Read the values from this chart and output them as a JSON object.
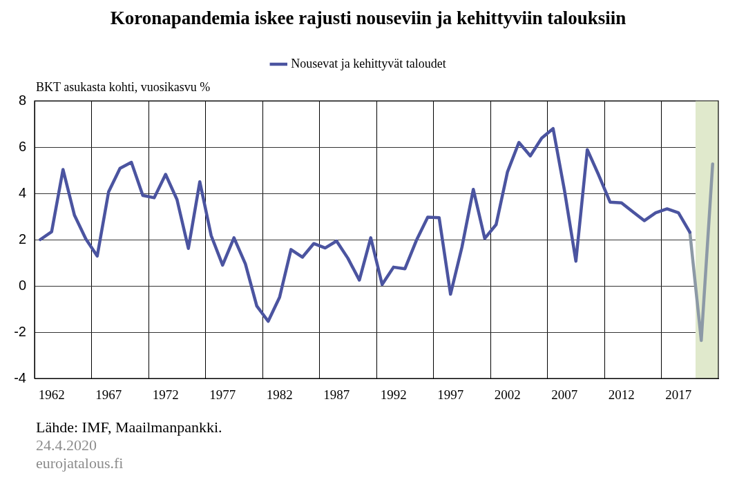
{
  "chart_data": {
    "type": "line",
    "title": "Koronapandemia iskee rajusti nouseviin ja kehittyviin talouksiin",
    "ylabel": "BKT asukasta kohti, vuosikasvu %",
    "xlim": [
      1960.5,
      2020.5
    ],
    "xticks": [
      1962,
      {
        "value": 1965.5,
        "label": null
      },
      1967,
      {
        "value": 1970.5,
        "label": null
      },
      1972,
      {
        "value": 1975.5,
        "label": null
      },
      1977,
      {
        "value": 1980.5,
        "label": null
      },
      1982,
      {
        "value": 1985.5,
        "label": null
      },
      1987,
      {
        "value": 1990.5,
        "label": null
      },
      1992,
      {
        "value": 1995.5,
        "label": null
      },
      1997,
      {
        "value": 2000.5,
        "label": null
      },
      2002,
      {
        "value": 2005.5,
        "label": null
      },
      2007,
      {
        "value": 2010.5,
        "label": null
      },
      2012,
      {
        "value": 2015.5,
        "label": null
      },
      2017
    ],
    "ylim": [
      -4,
      8
    ],
    "yticks": [
      -4,
      -2,
      0,
      2,
      4,
      6,
      8
    ],
    "grid": true,
    "legend": "top",
    "marker": "none",
    "line_style": "solid",
    "bands": [
      {
        "axis": "x",
        "from": 2018.5,
        "to": 2020.5,
        "color": "#e0e9cc"
      }
    ],
    "series": [
      {
        "name": "Nousevat ja kehittyvät taloudet",
        "color": "#4b54a0",
        "x": [
          1961,
          1962,
          1963,
          1964,
          1965,
          1966,
          1967,
          1968,
          1969,
          1970,
          1971,
          1972,
          1973,
          1974,
          1975,
          1976,
          1977,
          1978,
          1979,
          1980,
          1981,
          1982,
          1983,
          1984,
          1985,
          1986,
          1987,
          1988,
          1989,
          1990,
          1991,
          1992,
          1993,
          1994,
          1995,
          1996,
          1997,
          1998,
          1999,
          2000,
          2001,
          2002,
          2003,
          2004,
          2005,
          2006,
          2007,
          2008,
          2009,
          2010,
          2011,
          2012,
          2013,
          2014,
          2015,
          2016,
          2017,
          2018
        ],
        "values": [
          2.0,
          2.34,
          5.03,
          3.06,
          2.03,
          1.29,
          4.07,
          5.08,
          5.34,
          3.91,
          3.81,
          4.82,
          3.73,
          1.62,
          4.5,
          2.17,
          0.9,
          2.08,
          0.95,
          -0.87,
          -1.53,
          -0.49,
          1.57,
          1.24,
          1.83,
          1.64,
          1.94,
          1.19,
          0.25,
          2.08,
          0.06,
          0.81,
          0.74,
          1.96,
          2.97,
          2.95,
          -0.36,
          1.67,
          4.17,
          2.05,
          2.65,
          4.93,
          6.2,
          5.62,
          6.39,
          6.8,
          4.12,
          1.07,
          5.89,
          4.79,
          3.62,
          3.59,
          3.2,
          2.82,
          3.16,
          3.33,
          3.16,
          2.32
        ]
      },
      {
        "color": "#8c99a6",
        "x": [
          2018,
          2019,
          2020
        ],
        "values": [
          2.32,
          -2.36,
          5.27
        ]
      }
    ],
    "annotations": [
      "Lähde: IMF, Maailmanpankki.",
      "24.4.2020",
      "eurojatalous.fi"
    ]
  }
}
